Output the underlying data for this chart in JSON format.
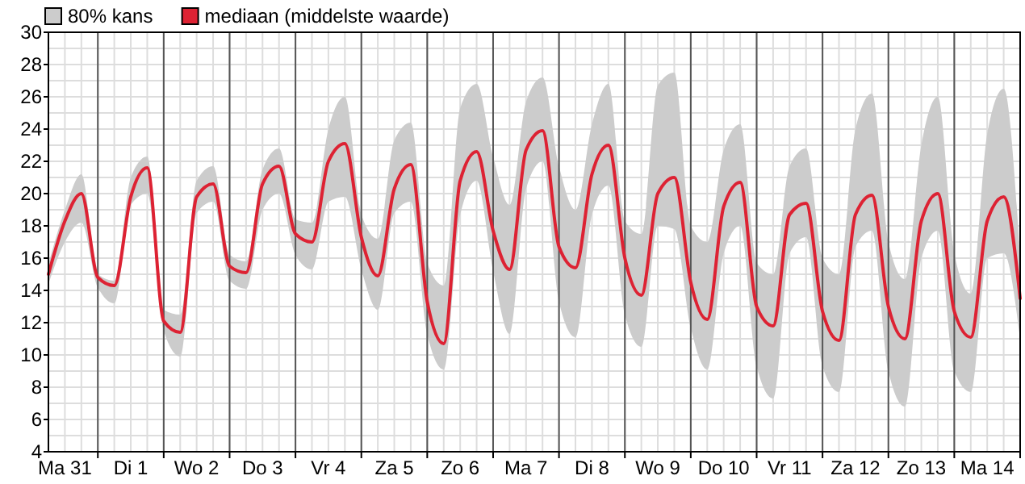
{
  "chart_data": {
    "type": "line",
    "legend": "top left",
    "grid": true,
    "annotations": [
      "80% kans"
    ],
    "categories": [
      null,
      "Ma 31",
      null,
      null,
      null,
      "Di 1",
      null,
      null,
      null,
      "Wo 2",
      null,
      null,
      null,
      "Do 3",
      null,
      null,
      null,
      "Vr 4",
      null,
      null,
      null,
      "Za 5",
      null,
      null,
      null,
      "Zo 6",
      null,
      null,
      null,
      "Ma 7",
      null,
      null,
      null,
      "Di 8",
      null,
      null,
      null,
      "Wo 9",
      null,
      null,
      null,
      "Do 10",
      null,
      null,
      null,
      "Vr 11",
      null,
      null,
      null,
      "Za 12",
      null,
      null,
      null,
      "Zo 13",
      null,
      null,
      null,
      "Ma 14",
      null,
      null
    ],
    "ylim": [
      4,
      30
    ],
    "yticks": [
      4,
      {
        "value": 5,
        "label": null
      },
      6,
      {
        "value": 7,
        "label": null
      },
      8,
      {
        "value": 9,
        "label": null
      },
      10,
      {
        "value": 11,
        "label": null
      },
      12,
      {
        "value": 13,
        "label": null
      },
      14,
      {
        "value": 15,
        "label": null
      },
      16,
      {
        "value": 17,
        "label": null
      },
      18,
      {
        "value": 19,
        "label": null
      },
      20,
      {
        "value": 21,
        "label": null
      },
      22,
      {
        "value": 23,
        "label": null
      },
      24,
      {
        "value": 25,
        "label": null
      },
      26,
      {
        "value": 27,
        "label": null
      },
      28,
      {
        "value": 29,
        "label": null
      },
      30
    ],
    "series": [
      {
        "name": "mediaan (middelste waarde)",
        "color": "#dd2233",
        "values": [
          15.0,
          18.3,
          20.0,
          14.8,
          14.3,
          19.8,
          21.6,
          12.1,
          11.4,
          19.8,
          20.6,
          15.5,
          15.1,
          20.6,
          21.7,
          17.5,
          17.0,
          22.0,
          23.1,
          17.3,
          14.9,
          20.3,
          21.8,
          13.3,
          10.7,
          20.8,
          22.6,
          17.7,
          15.3,
          22.7,
          23.9,
          16.7,
          15.4,
          21.2,
          23.0,
          16.0,
          13.7,
          20.0,
          21.0,
          14.5,
          12.2,
          19.2,
          20.7,
          13.0,
          11.8,
          18.7,
          19.4,
          12.7,
          10.9,
          18.7,
          19.9,
          13.0,
          11.0,
          18.3,
          20.0,
          12.7,
          11.1,
          18.3,
          19.8,
          13.5
        ],
        "lower": [
          14.4,
          17.0,
          18.2,
          14.2,
          13.2,
          19.3,
          20.0,
          11.5,
          9.9,
          18.8,
          19.5,
          14.6,
          14.1,
          19.0,
          20.0,
          16.2,
          15.3,
          19.5,
          19.8,
          15.3,
          12.8,
          18.8,
          19.5,
          11.3,
          9.1,
          18.7,
          20.8,
          15.2,
          11.3,
          20.3,
          22.0,
          13.3,
          11.1,
          18.7,
          20.5,
          12.5,
          10.5,
          18.0,
          17.8,
          11.7,
          9.1,
          16.3,
          18.0,
          9.3,
          7.3,
          16.3,
          17.3,
          9.3,
          7.7,
          16.7,
          17.7,
          9.0,
          6.8,
          16.0,
          17.7,
          9.0,
          7.7,
          16.0,
          16.3,
          11.0
        ],
        "upper": [
          15.6,
          19.0,
          21.2,
          15.0,
          14.6,
          21.0,
          22.3,
          12.8,
          12.5,
          20.8,
          21.7,
          16.2,
          15.8,
          21.5,
          22.8,
          18.4,
          18.2,
          24.0,
          26.0,
          18.7,
          17.2,
          23.3,
          24.4,
          15.7,
          14.3,
          25.3,
          26.8,
          22.3,
          19.3,
          25.7,
          27.2,
          21.7,
          19.0,
          24.3,
          26.8,
          18.3,
          17.5,
          26.7,
          27.5,
          18.0,
          17.0,
          22.7,
          24.3,
          15.7,
          15.0,
          21.7,
          22.8,
          16.0,
          15.0,
          24.0,
          26.2,
          17.0,
          14.7,
          23.0,
          26.0,
          16.3,
          13.8,
          23.7,
          26.5,
          16.0
        ]
      }
    ]
  }
}
